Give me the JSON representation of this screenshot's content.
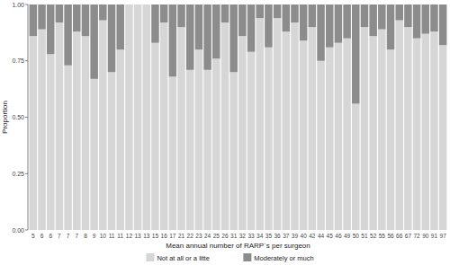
{
  "chart_data": {
    "type": "bar",
    "stacked": true,
    "grid": false,
    "legend": "bottom",
    "x_label": "Mean annual number of RARP´s per surgeon",
    "y_label": "Proportion",
    "categories": [
      "5",
      "6",
      "6",
      "7",
      "7",
      "7",
      "8",
      "9",
      "10",
      "11",
      "11",
      "12",
      "13",
      "13",
      "15",
      "16",
      "17",
      "21",
      "22",
      "23",
      "24",
      "25",
      "26",
      "31",
      "32",
      "33",
      "34",
      "35",
      "36",
      "37",
      "39",
      "40",
      "42",
      "44",
      "45",
      "46",
      "49",
      "50",
      "51",
      "52",
      "55",
      "56",
      "66",
      "67",
      "72",
      "90",
      "91",
      "97"
    ],
    "ylim": [
      0,
      1
    ],
    "yticks": [
      {
        "value": 0,
        "label": "0.00"
      },
      {
        "value": 0.25,
        "label": "0.25"
      },
      {
        "value": 0.5,
        "label": "0.50"
      },
      {
        "value": 0.75,
        "label": "0.75"
      },
      {
        "value": 1,
        "label": "1.00"
      }
    ],
    "series": [
      {
        "name": "Not at all or a litte",
        "color": "#d6d6d6",
        "values": [
          0.86,
          0.89,
          0.78,
          0.92,
          0.73,
          0.88,
          0.86,
          0.67,
          0.93,
          0.7,
          0.8,
          1,
          1,
          1,
          0.83,
          0.92,
          0.68,
          0.9,
          0.71,
          0.8,
          0.71,
          0.76,
          0.92,
          0.7,
          0.86,
          0.79,
          0.94,
          0.81,
          0.94,
          0.88,
          0.92,
          0.84,
          0.9,
          0.75,
          0.81,
          0.83,
          0.85,
          0.56,
          0.9,
          0.86,
          0.89,
          0.8,
          0.93,
          0.9,
          0.85,
          0.87,
          0.88,
          0.82
        ]
      },
      {
        "name": "Moderately or much",
        "color": "#8c8c8c",
        "values": [
          0.14,
          0.11,
          0.22,
          0.08,
          0.27,
          0.12,
          0.14,
          0.33,
          0.07,
          0.3,
          0.2,
          0,
          0,
          0,
          0.17,
          0.08,
          0.32,
          0.1,
          0.29,
          0.2,
          0.29,
          0.24,
          0.08,
          0.3,
          0.14,
          0.21,
          0.06,
          0.19,
          0.06,
          0.12,
          0.08,
          0.16,
          0.1,
          0.25,
          0.19,
          0.17,
          0.15,
          0.44,
          0.1,
          0.14,
          0.11,
          0.2,
          0.07,
          0.1,
          0.15,
          0.13,
          0.12,
          0.18
        ]
      }
    ]
  }
}
